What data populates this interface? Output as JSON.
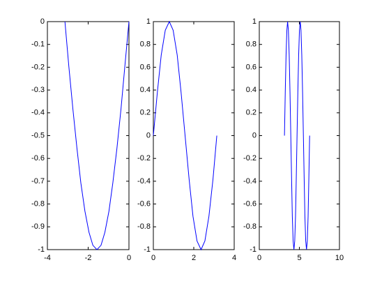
{
  "chart_data": [
    {
      "type": "line",
      "x": [
        -3.14,
        -2.95,
        -2.75,
        -2.55,
        -2.36,
        -2.16,
        -1.96,
        -1.77,
        -1.57,
        -1.37,
        -1.18,
        -0.98,
        -0.79,
        -0.59,
        -0.39,
        -0.2,
        0
      ],
      "series": [
        {
          "color": "#0000ff",
          "values": [
            0,
            -0.195,
            -0.383,
            -0.556,
            -0.707,
            -0.831,
            -0.924,
            -0.981,
            -1,
            -0.981,
            -0.924,
            -0.831,
            -0.707,
            -0.556,
            -0.383,
            -0.195,
            0
          ]
        }
      ],
      "xlim": [
        -4,
        0
      ],
      "ylim": [
        -1,
        0
      ],
      "xticks": [
        -4,
        -2,
        0
      ],
      "yticks": [
        -1,
        -0.9,
        -0.8,
        -0.7,
        -0.6,
        -0.5,
        -0.4,
        -0.3,
        -0.2,
        -0.1,
        0
      ]
    },
    {
      "type": "line",
      "x": [
        0,
        0.2,
        0.39,
        0.59,
        0.79,
        0.98,
        1.18,
        1.37,
        1.57,
        1.77,
        1.96,
        2.16,
        2.36,
        2.55,
        2.75,
        2.95,
        3.14
      ],
      "series": [
        {
          "color": "#0000ff",
          "values": [
            0,
            0.383,
            0.707,
            0.924,
            1,
            0.924,
            0.707,
            0.383,
            0,
            -0.383,
            -0.707,
            -0.924,
            -1,
            -0.924,
            -0.707,
            -0.383,
            0
          ]
        }
      ],
      "xlim": [
        0,
        4
      ],
      "ylim": [
        -1,
        1
      ],
      "xticks": [
        0,
        2,
        4
      ],
      "yticks": [
        -1,
        -0.8,
        -0.6,
        -0.4,
        -0.2,
        0,
        0.2,
        0.4,
        0.6,
        0.8,
        1
      ]
    },
    {
      "type": "line",
      "x": [
        3.14,
        3.24,
        3.34,
        3.44,
        3.53,
        3.63,
        3.73,
        3.83,
        3.93,
        4.03,
        4.12,
        4.22,
        4.32,
        4.42,
        4.52,
        4.61,
        4.71,
        4.81,
        4.91,
        5.01,
        5.11,
        5.2,
        5.3,
        5.4,
        5.5,
        5.6,
        5.69,
        5.79,
        5.89,
        5.99,
        6.09,
        6.18,
        6.28
      ],
      "series": [
        {
          "color": "#0000ff",
          "values": [
            0,
            0.383,
            0.707,
            0.924,
            1,
            0.924,
            0.707,
            0.383,
            0,
            -0.383,
            -0.707,
            -0.924,
            -1,
            -0.924,
            -0.707,
            -0.383,
            0,
            0.383,
            0.707,
            0.924,
            1,
            0.924,
            0.707,
            0.383,
            0,
            -0.383,
            -0.707,
            -0.924,
            -1,
            -0.924,
            -0.707,
            -0.383,
            0
          ]
        }
      ],
      "xlim": [
        0,
        10
      ],
      "ylim": [
        -1,
        1
      ],
      "xticks": [
        0,
        5,
        10
      ],
      "yticks": [
        -1,
        -0.8,
        -0.6,
        -0.4,
        -0.2,
        0,
        0.2,
        0.4,
        0.6,
        0.8,
        1
      ]
    }
  ]
}
